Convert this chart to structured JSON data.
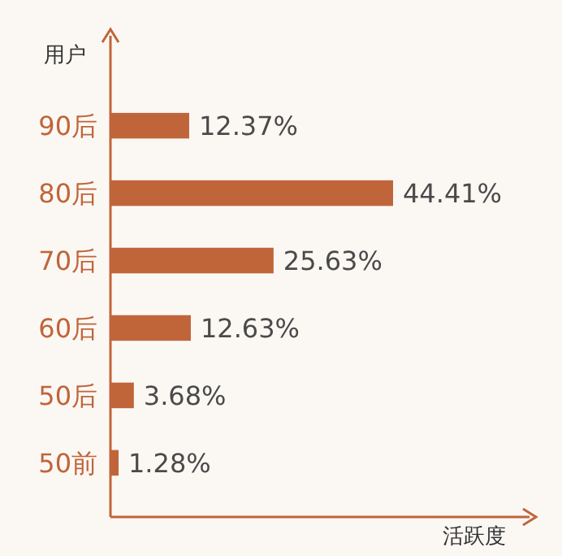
{
  "chart_data": {
    "type": "bar",
    "orientation": "horizontal",
    "ylabel": "用户",
    "xlabel": "活跃度",
    "categories": [
      "90后",
      "80后",
      "70后",
      "60后",
      "50后",
      "50前"
    ],
    "values": [
      12.37,
      44.41,
      25.63,
      12.63,
      3.68,
      1.28
    ],
    "value_labels": [
      "12.37%",
      "44.41%",
      "25.63%",
      "12.63%",
      "3.68%",
      "1.28%"
    ],
    "color": "#c0653a"
  }
}
